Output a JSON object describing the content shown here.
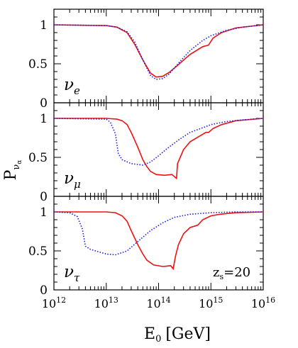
{
  "chart_data": {
    "type": "line",
    "x_scale": "log",
    "xlim": [
      1000000000000.0,
      1e+16
    ],
    "ylim": [
      0,
      1.2
    ],
    "xlabel": "E",
    "xlabel_sub": "0",
    "xlabel_unit": "[GeV]",
    "ylabel": "P",
    "ylabel_sub": "ν",
    "ylabel_subsub": "α",
    "x_tick_labels": [
      {
        "base": "10",
        "exp": "12",
        "value": 1000000000000.0
      },
      {
        "base": "10",
        "exp": "13",
        "value": 10000000000000.0
      },
      {
        "base": "10",
        "exp": "14",
        "value": 100000000000000.0
      },
      {
        "base": "10",
        "exp": "15",
        "value": 1000000000000000.0
      },
      {
        "base": "10",
        "exp": "16",
        "value": 1e+16
      }
    ],
    "y_tick_labels": [
      {
        "label": "0",
        "value": 0
      },
      {
        "label": "0.5",
        "value": 0.5
      },
      {
        "label": "1",
        "value": 1
      }
    ],
    "annotation": {
      "text": "z",
      "sub": "s",
      "value": "=20",
      "panel": 2
    },
    "grid": false,
    "legend": "none",
    "panels": [
      {
        "label": "ν",
        "label_sub": "e",
        "series": [
          {
            "style": "solid",
            "color": "#ee1111",
            "x": [
              1000000000000.0,
              10000000000000.0,
              16000000000000.0,
              25000000000000.0,
              35000000000000.0,
              50000000000000.0,
              70000000000000.0,
              90000000000000.0,
              120000000000000.0,
              160000000000000.0,
              250000000000000.0,
              400000000000000.0,
              700000000000000.0,
              900000000000000.0,
              1100000000000000.0,
              1600000000000000.0,
              3000000000000000.0,
              1e+16
            ],
            "y": [
              1.0,
              0.99,
              0.97,
              0.9,
              0.75,
              0.55,
              0.38,
              0.33,
              0.34,
              0.39,
              0.5,
              0.62,
              0.72,
              0.74,
              0.83,
              0.9,
              0.96,
              1.0
            ]
          },
          {
            "style": "dotted",
            "color": "#1a1aee",
            "x": [
              1000000000000.0,
              10000000000000.0,
              16000000000000.0,
              25000000000000.0,
              35000000000000.0,
              50000000000000.0,
              70000000000000.0,
              90000000000000.0,
              120000000000000.0,
              160000000000000.0,
              250000000000000.0,
              400000000000000.0,
              700000000000000.0,
              1000000000000000.0,
              2000000000000000.0,
              4000000000000000.0,
              1e+16
            ],
            "y": [
              1.0,
              0.99,
              0.97,
              0.91,
              0.78,
              0.55,
              0.35,
              0.3,
              0.31,
              0.37,
              0.52,
              0.67,
              0.8,
              0.86,
              0.93,
              0.97,
              1.0
            ]
          }
        ]
      },
      {
        "label": "ν",
        "label_sub": "μ",
        "series": [
          {
            "style": "solid",
            "color": "#ee1111",
            "x": [
              1000000000000.0,
              10000000000000.0,
              16000000000000.0,
              20000000000000.0,
              25000000000000.0,
              30000000000000.0,
              40000000000000.0,
              50000000000000.0,
              60000000000000.0,
              70000000000000.0,
              90000000000000.0,
              130000000000000.0,
              180000000000000.0,
              220000000000000.0,
              230000000000000.0,
              300000000000000.0,
              400000000000000.0,
              600000000000000.0,
              800000000000000.0,
              900000000000000.0,
              1100000000000000.0,
              1600000000000000.0,
              3000000000000000.0,
              1e+16
            ],
            "y": [
              1.0,
              1.0,
              0.99,
              0.97,
              0.92,
              0.82,
              0.63,
              0.47,
              0.38,
              0.32,
              0.28,
              0.27,
              0.28,
              0.23,
              0.42,
              0.6,
              0.7,
              0.77,
              0.82,
              0.82,
              0.87,
              0.92,
              0.97,
              1.0
            ]
          },
          {
            "style": "dotted",
            "color": "#1a1aee",
            "x": [
              1000000000000.0,
              10000000000000.0,
              12000000000000.0,
              15000000000000.0,
              17000000000000.0,
              20000000000000.0,
              30000000000000.0,
              50000000000000.0,
              70000000000000.0,
              100000000000000.0,
              150000000000000.0,
              250000000000000.0,
              400000000000000.0,
              700000000000000.0,
              1000000000000000.0,
              2000000000000000.0,
              4000000000000000.0,
              1e+16
            ],
            "y": [
              1.0,
              0.99,
              0.95,
              0.8,
              0.55,
              0.47,
              0.42,
              0.4,
              0.44,
              0.52,
              0.62,
              0.73,
              0.82,
              0.88,
              0.92,
              0.96,
              0.98,
              1.0
            ]
          }
        ]
      },
      {
        "label": "ν",
        "label_sub": "τ",
        "series": [
          {
            "style": "solid",
            "color": "#ee1111",
            "x": [
              1000000000000.0,
              10000000000000.0,
              15000000000000.0,
              20000000000000.0,
              25000000000000.0,
              30000000000000.0,
              40000000000000.0,
              50000000000000.0,
              60000000000000.0,
              80000000000000.0,
              120000000000000.0,
              170000000000000.0,
              190000000000000.0,
              210000000000000.0,
              240000000000000.0,
              300000000000000.0,
              400000000000000.0,
              500000000000000.0,
              560000000000000.0,
              700000000000000.0,
              1000000000000000.0,
              1500000000000000.0,
              3000000000000000.0,
              1e+16
            ],
            "y": [
              1.0,
              1.0,
              0.99,
              0.95,
              0.88,
              0.76,
              0.58,
              0.46,
              0.38,
              0.32,
              0.3,
              0.31,
              0.27,
              0.43,
              0.58,
              0.72,
              0.8,
              0.82,
              0.83,
              0.9,
              0.95,
              0.97,
              0.99,
              1.0
            ]
          },
          {
            "style": "dotted",
            "color": "#1a1aee",
            "x": [
              1000000000000.0,
              2000000000000.0,
              2800000000000.0,
              3500000000000.0,
              4000000000000.0,
              5000000000000.0,
              7000000000000.0,
              10000000000000.0,
              15000000000000.0,
              25000000000000.0,
              40000000000000.0,
              70000000000000.0,
              120000000000000.0,
              200000000000000.0,
              400000000000000.0,
              1000000000000000.0,
              3000000000000000.0,
              1e+16
            ],
            "y": [
              1.0,
              0.99,
              0.94,
              0.78,
              0.56,
              0.52,
              0.49,
              0.46,
              0.45,
              0.5,
              0.62,
              0.76,
              0.86,
              0.93,
              0.97,
              0.99,
              1.0,
              1.0
            ]
          }
        ]
      }
    ]
  }
}
